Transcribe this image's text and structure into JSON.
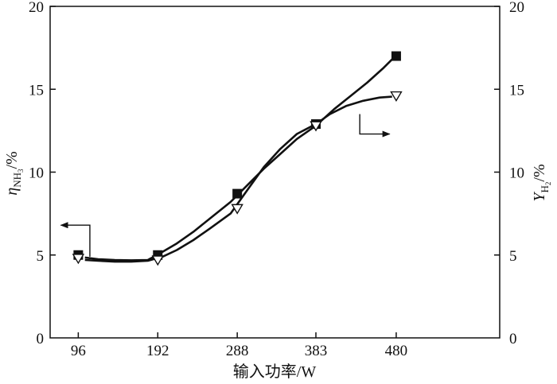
{
  "chart_data": {
    "type": "line",
    "title": "",
    "xlabel": "输入功率/W",
    "ylabel_left": {
      "symbol": "η",
      "subscript": "NH",
      "sub2": "3",
      "suffix": "/%"
    },
    "ylabel_right": {
      "symbol": "Y",
      "subscript": "H",
      "sub2": "2",
      "suffix": "/%"
    },
    "x_ticks": [
      96,
      192,
      288,
      383,
      480
    ],
    "y_left_ticks": [
      0,
      5,
      10,
      15,
      20
    ],
    "y_right_ticks": [
      0,
      5,
      10,
      15,
      20
    ],
    "xlim": [
      62,
      605
    ],
    "ylim_left": [
      0,
      20
    ],
    "ylim_right": [
      0,
      20
    ],
    "series": [
      {
        "marker": "square",
        "axis": "left",
        "color": "#111111",
        "x": [
          96,
          192,
          288,
          383,
          480
        ],
        "y": [
          5.0,
          5.0,
          8.7,
          12.9,
          17.0
        ],
        "curve": [
          [
            104,
            4.85
          ],
          [
            120,
            4.75
          ],
          [
            140,
            4.7
          ],
          [
            160,
            4.68
          ],
          [
            180,
            4.7
          ],
          [
            198,
            5.2
          ],
          [
            215,
            5.7
          ],
          [
            235,
            6.4
          ],
          [
            255,
            7.2
          ],
          [
            280,
            8.2
          ],
          [
            300,
            9.2
          ],
          [
            320,
            10.2
          ],
          [
            340,
            11.1
          ],
          [
            360,
            12.0
          ],
          [
            383,
            12.8
          ],
          [
            405,
            13.8
          ],
          [
            425,
            14.6
          ],
          [
            445,
            15.4
          ],
          [
            465,
            16.3
          ],
          [
            475,
            16.8
          ]
        ]
      },
      {
        "marker": "triangle-down",
        "axis": "right",
        "color": "#111111",
        "x": [
          96,
          192,
          288,
          383,
          480
        ],
        "y": [
          4.8,
          4.7,
          7.8,
          12.8,
          14.6
        ],
        "curve": [
          [
            104,
            4.7
          ],
          [
            120,
            4.65
          ],
          [
            140,
            4.6
          ],
          [
            160,
            4.6
          ],
          [
            180,
            4.65
          ],
          [
            198,
            4.9
          ],
          [
            215,
            5.3
          ],
          [
            235,
            5.9
          ],
          [
            255,
            6.6
          ],
          [
            280,
            7.5
          ],
          [
            300,
            8.9
          ],
          [
            320,
            10.3
          ],
          [
            340,
            11.4
          ],
          [
            360,
            12.3
          ],
          [
            383,
            12.9
          ],
          [
            400,
            13.5
          ],
          [
            420,
            14.0
          ],
          [
            440,
            14.3
          ],
          [
            460,
            14.5
          ],
          [
            475,
            14.55
          ]
        ]
      }
    ],
    "annotations": [
      {
        "type": "arrow",
        "points_to": "left-axis",
        "anchor_x": 110,
        "anchor_y": 4.9,
        "mid_y": 6.8,
        "end_x": 75
      },
      {
        "type": "arrow",
        "points_to": "right-axis",
        "anchor_x": 436,
        "anchor_y": 13.5,
        "mid_y": 12.3,
        "end_x": 472
      }
    ]
  }
}
